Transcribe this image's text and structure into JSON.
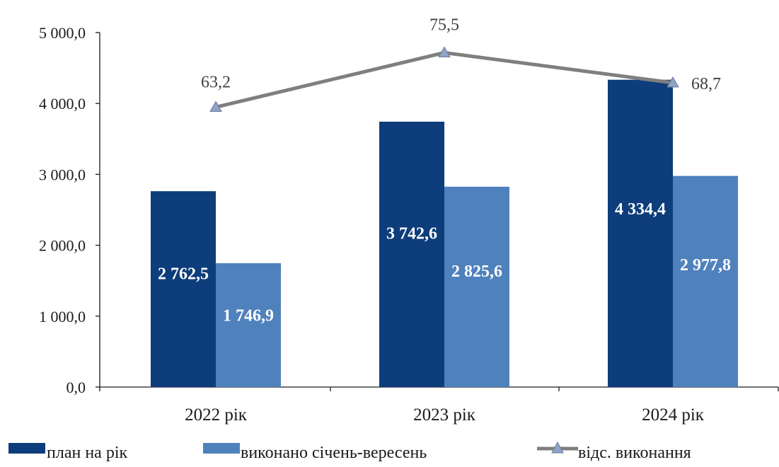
{
  "chart_data": {
    "type": "bar",
    "categories": [
      "2022 рік",
      "2023 рік",
      "2024 рік"
    ],
    "y_ticks": [
      "0,0",
      "1 000,0",
      "2 000,0",
      "3 000,0",
      "4 000,0",
      "5 000,0"
    ],
    "ylim": [
      0,
      5000
    ],
    "grid": false,
    "legend_position": "bottom",
    "series": [
      {
        "name": "план на рік",
        "kind": "bar",
        "color": "#0d3d7a",
        "values": [
          2762.5,
          3742.6,
          4334.4
        ],
        "labels": [
          "2 762,5",
          "3 742,6",
          "4 334,4"
        ]
      },
      {
        "name": "виконано січень-вересень",
        "kind": "bar",
        "color": "#4f81bd",
        "values": [
          1746.9,
          2825.6,
          2977.8
        ],
        "labels": [
          "1 746,9",
          "2 825,6",
          "2 977,8"
        ]
      },
      {
        "name": "відс. виконання",
        "kind": "line",
        "marker": "triangle",
        "color": "#7f7f7f",
        "values": [
          63.2,
          75.5,
          68.7
        ],
        "labels": [
          "63,2",
          "75,5",
          "68,7"
        ]
      }
    ]
  }
}
